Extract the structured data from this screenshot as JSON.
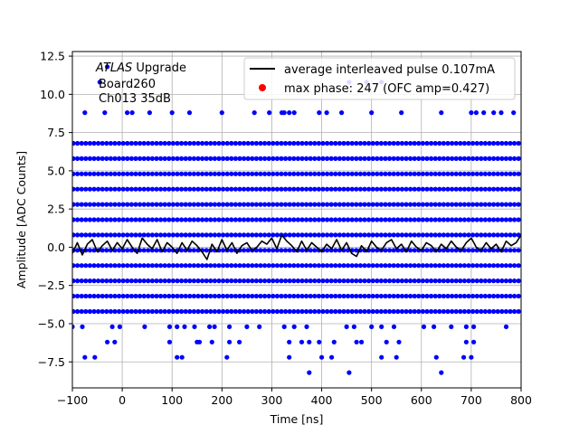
{
  "chart_data": {
    "type": "scatter",
    "xlabel": "Time [ns]",
    "ylabel": "Amplitude [ADC Counts]",
    "xlim": [
      -100,
      800
    ],
    "ylim": [
      -9.2,
      12.8
    ],
    "grid": true,
    "x_ticks": [
      -100,
      0,
      100,
      200,
      300,
      400,
      500,
      600,
      700,
      800
    ],
    "y_ticks": [
      -7.5,
      -5.0,
      -2.5,
      0.0,
      2.5,
      5.0,
      7.5,
      10.0,
      12.5
    ],
    "x_tick_labels": [
      "−100",
      "0",
      "100",
      "200",
      "300",
      "400",
      "500",
      "600",
      "700",
      "800"
    ],
    "y_tick_labels": [
      "−7.5",
      "−5.0",
      "−2.5",
      "0.0",
      "2.5",
      "5.0",
      "7.5",
      "10.0",
      "12.5"
    ],
    "annotation": {
      "line1_italic": "ATLAS",
      "line1_rest": " Upgrade",
      "line2": "Board260",
      "line3": "Ch013 35dB"
    },
    "legend": {
      "placement": "top-right",
      "entries": [
        {
          "label": "average interleaved pulse 0.107mA",
          "marker": "line",
          "color": "#000000"
        },
        {
          "label": "max phase: 247 (OFC amp=0.427)",
          "marker": "dot",
          "color": "#ff0000"
        }
      ]
    },
    "series": [
      {
        "kind": "scatter",
        "color": "#0000ff",
        "dense_levels": [
          -4.2,
          -3.2,
          -2.2,
          -1.2,
          -0.2,
          0.8,
          1.8,
          2.8,
          3.8,
          4.8,
          5.8,
          6.8
        ],
        "sparse_points": [
          [
            -75,
            8.8
          ],
          [
            -35,
            8.8
          ],
          [
            10,
            8.8
          ],
          [
            20,
            8.8
          ],
          [
            55,
            8.8
          ],
          [
            100,
            8.8
          ],
          [
            135,
            8.8
          ],
          [
            200,
            8.8
          ],
          [
            265,
            8.8
          ],
          [
            295,
            8.8
          ],
          [
            320,
            8.8
          ],
          [
            325,
            8.8
          ],
          [
            335,
            8.8
          ],
          [
            345,
            8.8
          ],
          [
            395,
            8.8
          ],
          [
            410,
            8.8
          ],
          [
            440,
            8.8
          ],
          [
            500,
            8.8
          ],
          [
            560,
            8.8
          ],
          [
            640,
            8.8
          ],
          [
            700,
            8.8
          ],
          [
            710,
            8.8
          ],
          [
            725,
            8.8
          ],
          [
            745,
            8.8
          ],
          [
            760,
            8.8
          ],
          [
            785,
            8.8
          ],
          [
            -45,
            10.8
          ],
          [
            -30,
            11.8
          ],
          [
            455,
            10.8
          ],
          [
            490,
            10.8
          ],
          [
            520,
            10.8
          ],
          [
            -100,
            -5.2
          ],
          [
            -80,
            -5.2
          ],
          [
            -20,
            -5.2
          ],
          [
            -5,
            -5.2
          ],
          [
            45,
            -5.2
          ],
          [
            95,
            -5.2
          ],
          [
            110,
            -5.2
          ],
          [
            125,
            -5.2
          ],
          [
            145,
            -5.2
          ],
          [
            175,
            -5.2
          ],
          [
            185,
            -5.2
          ],
          [
            215,
            -5.2
          ],
          [
            250,
            -5.2
          ],
          [
            275,
            -5.2
          ],
          [
            325,
            -5.2
          ],
          [
            345,
            -5.2
          ],
          [
            370,
            -5.2
          ],
          [
            450,
            -5.2
          ],
          [
            465,
            -5.2
          ],
          [
            500,
            -5.2
          ],
          [
            520,
            -5.2
          ],
          [
            545,
            -5.2
          ],
          [
            605,
            -5.2
          ],
          [
            625,
            -5.2
          ],
          [
            660,
            -5.2
          ],
          [
            690,
            -5.2
          ],
          [
            705,
            -5.2
          ],
          [
            770,
            -5.2
          ],
          [
            -30,
            -6.2
          ],
          [
            -15,
            -6.2
          ],
          [
            95,
            -6.2
          ],
          [
            150,
            -6.2
          ],
          [
            155,
            -6.2
          ],
          [
            180,
            -6.2
          ],
          [
            215,
            -6.2
          ],
          [
            235,
            -6.2
          ],
          [
            335,
            -6.2
          ],
          [
            360,
            -6.2
          ],
          [
            375,
            -6.2
          ],
          [
            395,
            -6.2
          ],
          [
            425,
            -6.2
          ],
          [
            470,
            -6.2
          ],
          [
            480,
            -6.2
          ],
          [
            530,
            -6.2
          ],
          [
            555,
            -6.2
          ],
          [
            690,
            -6.2
          ],
          [
            705,
            -6.2
          ],
          [
            -75,
            -7.2
          ],
          [
            -55,
            -7.2
          ],
          [
            110,
            -7.2
          ],
          [
            120,
            -7.2
          ],
          [
            210,
            -7.2
          ],
          [
            335,
            -7.2
          ],
          [
            400,
            -7.2
          ],
          [
            420,
            -7.2
          ],
          [
            520,
            -7.2
          ],
          [
            550,
            -7.2
          ],
          [
            630,
            -7.2
          ],
          [
            685,
            -7.2
          ],
          [
            700,
            -7.2
          ],
          [
            375,
            -8.2
          ],
          [
            455,
            -8.2
          ],
          [
            640,
            -8.2
          ]
        ]
      },
      {
        "kind": "line",
        "color": "#000000",
        "points": [
          [
            -100,
            -0.4
          ],
          [
            -90,
            0.3
          ],
          [
            -80,
            -0.5
          ],
          [
            -70,
            0.2
          ],
          [
            -60,
            0.5
          ],
          [
            -50,
            -0.3
          ],
          [
            -40,
            0.1
          ],
          [
            -30,
            0.4
          ],
          [
            -20,
            -0.2
          ],
          [
            -10,
            0.3
          ],
          [
            0,
            -0.1
          ],
          [
            10,
            0.5
          ],
          [
            20,
            0.0
          ],
          [
            30,
            -0.4
          ],
          [
            40,
            0.6
          ],
          [
            50,
            0.2
          ],
          [
            60,
            -0.1
          ],
          [
            70,
            0.5
          ],
          [
            80,
            -0.3
          ],
          [
            90,
            0.3
          ],
          [
            100,
            0.0
          ],
          [
            110,
            -0.4
          ],
          [
            120,
            0.3
          ],
          [
            130,
            -0.2
          ],
          [
            140,
            0.4
          ],
          [
            150,
            0.1
          ],
          [
            160,
            -0.3
          ],
          [
            170,
            -0.8
          ],
          [
            180,
            0.2
          ],
          [
            190,
            -0.3
          ],
          [
            200,
            0.5
          ],
          [
            210,
            -0.2
          ],
          [
            220,
            0.3
          ],
          [
            230,
            -0.4
          ],
          [
            240,
            0.1
          ],
          [
            250,
            0.3
          ],
          [
            260,
            -0.2
          ],
          [
            270,
            0.0
          ],
          [
            280,
            0.4
          ],
          [
            290,
            0.2
          ],
          [
            300,
            0.6
          ],
          [
            310,
            -0.1
          ],
          [
            320,
            0.8
          ],
          [
            330,
            0.4
          ],
          [
            340,
            0.1
          ],
          [
            350,
            -0.3
          ],
          [
            360,
            0.4
          ],
          [
            370,
            -0.2
          ],
          [
            380,
            0.3
          ],
          [
            390,
            0.0
          ],
          [
            400,
            -0.3
          ],
          [
            410,
            0.2
          ],
          [
            420,
            -0.1
          ],
          [
            430,
            0.5
          ],
          [
            440,
            -0.2
          ],
          [
            450,
            0.3
          ],
          [
            460,
            -0.4
          ],
          [
            470,
            -0.6
          ],
          [
            480,
            0.1
          ],
          [
            490,
            -0.3
          ],
          [
            500,
            0.4
          ],
          [
            510,
            0.0
          ],
          [
            520,
            -0.2
          ],
          [
            530,
            0.3
          ],
          [
            540,
            0.5
          ],
          [
            550,
            -0.1
          ],
          [
            560,
            0.2
          ],
          [
            570,
            -0.3
          ],
          [
            580,
            0.4
          ],
          [
            590,
            0.0
          ],
          [
            600,
            -0.2
          ],
          [
            610,
            0.3
          ],
          [
            620,
            0.1
          ],
          [
            630,
            -0.3
          ],
          [
            640,
            0.2
          ],
          [
            650,
            -0.1
          ],
          [
            660,
            0.4
          ],
          [
            670,
            0.0
          ],
          [
            680,
            -0.2
          ],
          [
            690,
            0.3
          ],
          [
            700,
            0.6
          ],
          [
            710,
            0.0
          ],
          [
            720,
            -0.2
          ],
          [
            730,
            0.3
          ],
          [
            740,
            -0.1
          ],
          [
            750,
            0.2
          ],
          [
            760,
            -0.3
          ],
          [
            770,
            0.4
          ],
          [
            780,
            0.1
          ],
          [
            790,
            0.3
          ],
          [
            800,
            0.8
          ]
        ]
      }
    ]
  }
}
